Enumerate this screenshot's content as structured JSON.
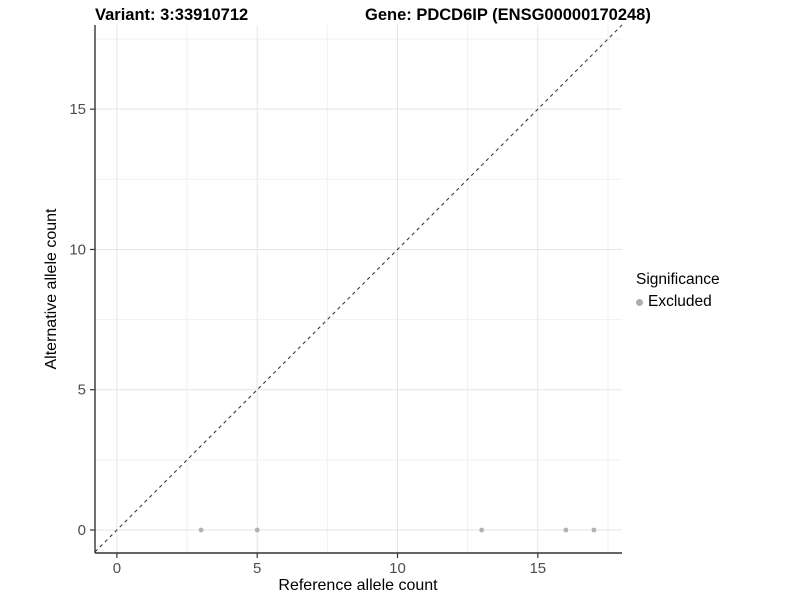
{
  "titles": {
    "variant": "Variant: 3:33910712",
    "gene": "Gene: PDCD6IP (ENSG00000170248)"
  },
  "axes": {
    "x_label": "Reference allele count",
    "y_label": "Alternative allele count"
  },
  "legend": {
    "title": "Significance",
    "items": [
      {
        "label": "Excluded",
        "color": "#aeaeae"
      }
    ]
  },
  "colors": {
    "background": "#ffffff",
    "grid_major": "#e5e5e5",
    "grid_minor": "#f1f1f1",
    "axis_line": "#333333",
    "tick_label": "#4d4d4d",
    "dashed_line": "#3d3d3d",
    "point": "#b2b2b2"
  },
  "chart_data": {
    "type": "scatter",
    "title": "Variant: 3:33910712 | Gene: PDCD6IP (ENSG00000170248)",
    "xlabel": "Reference allele count",
    "ylabel": "Alternative allele count",
    "xlim": [
      -0.78,
      18.0
    ],
    "ylim": [
      -0.82,
      18.0
    ],
    "x_breaks": [
      0,
      5,
      10,
      15
    ],
    "y_breaks": [
      0,
      5,
      10,
      15
    ],
    "x_minor_breaks": [
      2.5,
      7.5,
      12.5,
      17.5
    ],
    "y_minor_breaks": [
      2.5,
      7.5,
      12.5,
      17.5
    ],
    "grid": true,
    "legend_position": "right",
    "series": [
      {
        "name": "Excluded",
        "color": "#b2b2b2",
        "points": [
          [
            3,
            0
          ],
          [
            5,
            0
          ],
          [
            13,
            0
          ],
          [
            16,
            0
          ],
          [
            17,
            0
          ]
        ]
      }
    ],
    "reference_line": {
      "description": "identity line y = x",
      "style": "dashed",
      "color": "#3d3d3d"
    }
  }
}
